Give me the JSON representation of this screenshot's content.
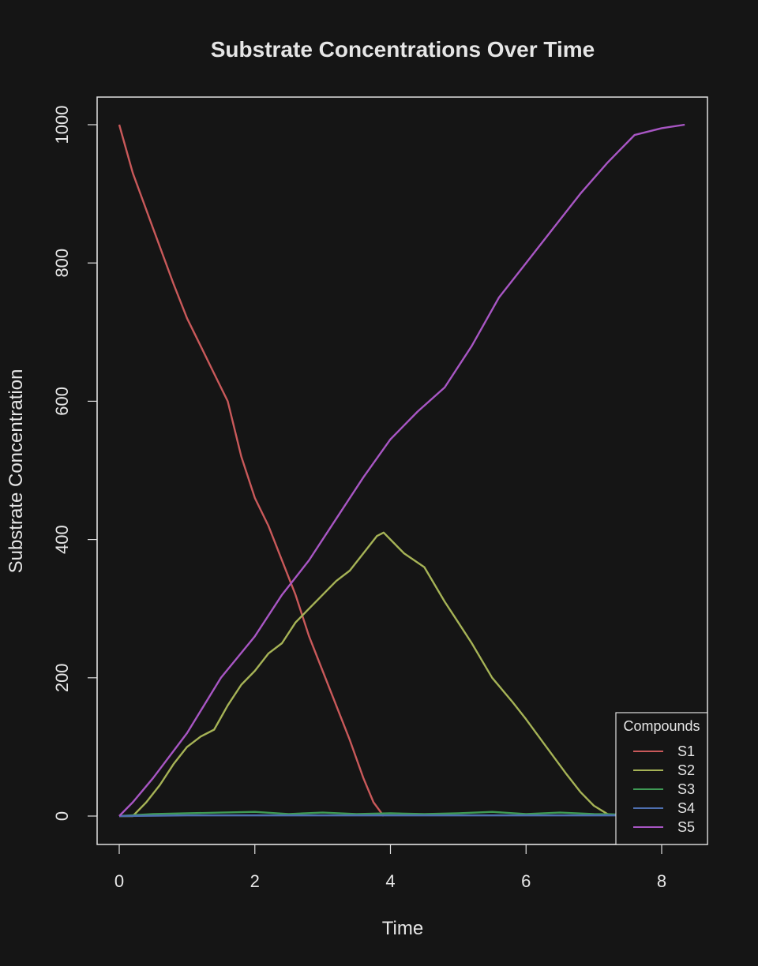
{
  "chart_data": {
    "type": "line",
    "title": "Substrate Concentrations Over Time",
    "xlabel": "Time",
    "ylabel": "Substrate Concentration",
    "xlim": [
      0,
      8.34
    ],
    "ylim": [
      0,
      1000
    ],
    "xticks": [
      0,
      2,
      4,
      6,
      8
    ],
    "yticks": [
      0,
      200,
      400,
      600,
      800,
      1000
    ],
    "grid": false,
    "legend": {
      "title": "Compounds",
      "position": "bottom-right"
    },
    "series": [
      {
        "name": "S1",
        "color": "#c9595a",
        "x": [
          0,
          0.2,
          0.5,
          0.8,
          1.0,
          1.2,
          1.4,
          1.6,
          1.8,
          2.0,
          2.2,
          2.4,
          2.6,
          2.8,
          3.0,
          3.2,
          3.4,
          3.6,
          3.75,
          3.9
        ],
        "y": [
          1000,
          930,
          850,
          770,
          720,
          680,
          640,
          600,
          520,
          460,
          420,
          370,
          320,
          260,
          210,
          160,
          110,
          55,
          20,
          0
        ]
      },
      {
        "name": "S2",
        "color": "#a6b356",
        "x": [
          0,
          0.2,
          0.4,
          0.6,
          0.8,
          1.0,
          1.2,
          1.4,
          1.6,
          1.8,
          2.0,
          2.2,
          2.4,
          2.6,
          2.8,
          3.0,
          3.2,
          3.4,
          3.6,
          3.8,
          3.9,
          4.0,
          4.2,
          4.5,
          4.8,
          5.0,
          5.2,
          5.5,
          5.8,
          6.0,
          6.3,
          6.6,
          6.8,
          7.0,
          7.2,
          7.5,
          8.0
        ],
        "y": [
          0,
          0,
          20,
          45,
          75,
          100,
          115,
          125,
          160,
          190,
          210,
          235,
          250,
          280,
          300,
          320,
          340,
          355,
          380,
          405,
          410,
          400,
          380,
          360,
          310,
          280,
          250,
          200,
          165,
          140,
          100,
          60,
          35,
          15,
          3,
          0,
          0
        ]
      },
      {
        "name": "S3",
        "color": "#3f9a55",
        "x": [
          0,
          0.5,
          1.0,
          1.5,
          2.0,
          2.5,
          3.0,
          3.5,
          4.0,
          4.5,
          5.0,
          5.5,
          6.0,
          6.5,
          7.0,
          7.5
        ],
        "y": [
          0,
          3,
          4,
          5,
          6,
          3,
          5,
          3,
          4,
          3,
          4,
          6,
          3,
          5,
          3,
          2
        ]
      },
      {
        "name": "S4",
        "color": "#4e6fb0",
        "x": [
          0,
          1,
          2,
          3,
          4,
          5,
          6,
          7,
          7.5
        ],
        "y": [
          0,
          1,
          1,
          1,
          1,
          1,
          1,
          1,
          1
        ]
      },
      {
        "name": "S5",
        "color": "#a856c4",
        "x": [
          0,
          0.2,
          0.5,
          1.0,
          1.5,
          2.0,
          2.4,
          2.8,
          3.2,
          3.6,
          4.0,
          4.4,
          4.8,
          5.2,
          5.6,
          6.0,
          6.4,
          6.8,
          7.2,
          7.6,
          8.0,
          8.34
        ],
        "y": [
          0,
          20,
          55,
          120,
          200,
          260,
          320,
          370,
          430,
          490,
          545,
          585,
          620,
          680,
          750,
          800,
          850,
          900,
          945,
          985,
          995,
          1000
        ]
      }
    ]
  }
}
